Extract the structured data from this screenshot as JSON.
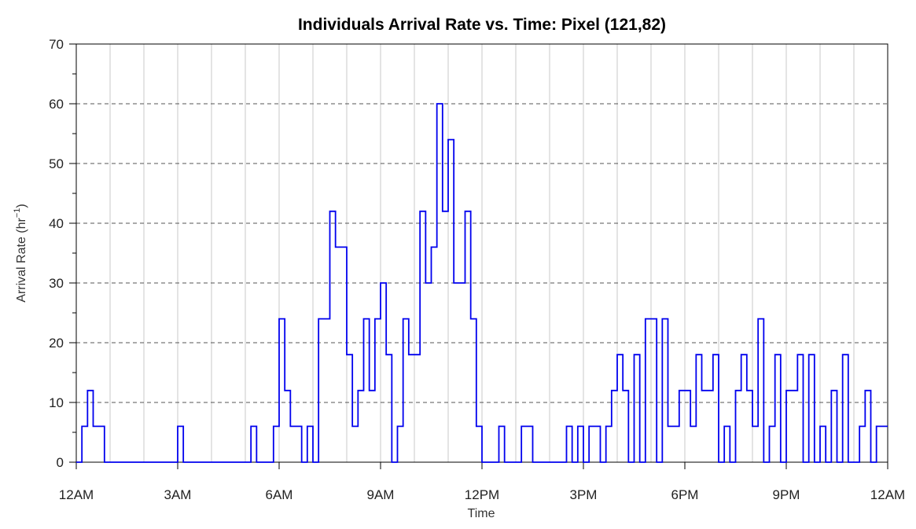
{
  "chart_data": {
    "type": "line",
    "title": "Individuals Arrival Rate vs. Time: Pixel (121,82)",
    "xlabel": "Time",
    "ylabel": "Arrival Rate (hr",
    "ylabel_superscript": "−1",
    "ylabel_suffix": ")",
    "xlim": [
      0,
      24
    ],
    "ylim": [
      0,
      70
    ],
    "x_tick_labels": [
      "12AM",
      "3AM",
      "6AM",
      "9AM",
      "12PM",
      "3PM",
      "6PM",
      "9PM",
      "12AM"
    ],
    "y_tick_labels": [
      "0",
      "10",
      "20",
      "30",
      "40",
      "50",
      "60",
      "70"
    ],
    "x_grid": "solid light gray",
    "y_grid": "dashed dark gray",
    "step_interval_hours": 0.16667,
    "series": [
      {
        "color": "#0000ee",
        "x_start_hours": 0,
        "values": [
          0,
          6,
          12,
          6,
          6,
          0,
          0,
          0,
          0,
          0,
          0,
          0,
          0,
          0,
          0,
          0,
          0,
          0,
          6,
          0,
          0,
          0,
          0,
          0,
          0,
          0,
          0,
          0,
          0,
          0,
          0,
          6,
          0,
          0,
          0,
          6,
          24,
          12,
          6,
          6,
          0,
          6,
          0,
          24,
          24,
          42,
          36,
          36,
          18,
          6,
          12,
          24,
          12,
          24,
          30,
          18,
          0,
          6,
          24,
          18,
          18,
          42,
          30,
          36,
          60,
          42,
          54,
          30,
          30,
          42,
          24,
          6,
          0,
          0,
          0,
          6,
          0,
          0,
          0,
          6,
          6,
          0,
          0,
          0,
          0,
          0,
          0,
          6,
          0,
          6,
          0,
          6,
          6,
          0,
          6,
          12,
          18,
          12,
          0,
          18,
          0,
          24,
          24,
          0,
          24,
          6,
          6,
          12,
          12,
          6,
          18,
          12,
          12,
          18,
          0,
          6,
          0,
          12,
          18,
          12,
          6,
          24,
          0,
          6,
          18,
          0,
          12,
          12,
          18,
          0,
          18,
          0,
          6,
          0,
          12,
          0,
          18,
          0,
          0,
          6,
          12,
          0,
          6,
          6
        ]
      }
    ]
  }
}
